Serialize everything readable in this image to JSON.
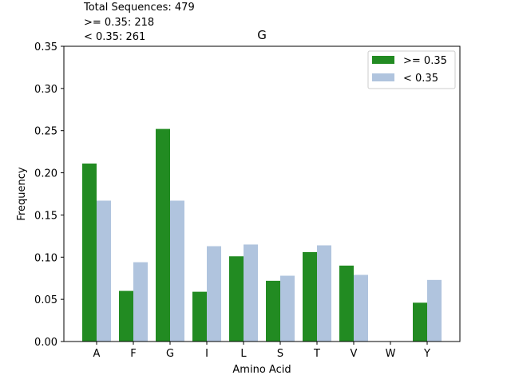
{
  "annotations": {
    "total": "Total Sequences: 479",
    "above": ">= 0.35: 218",
    "below": "< 0.35: 261"
  },
  "chart_data": {
    "type": "bar",
    "title": "G",
    "xlabel": "Amino Acid",
    "ylabel": "Frequency",
    "ylim": [
      0,
      0.35
    ],
    "yticks": [
      "0.00",
      "0.05",
      "0.10",
      "0.15",
      "0.20",
      "0.25",
      "0.30",
      "0.35"
    ],
    "categories": [
      "A",
      "F",
      "G",
      "I",
      "L",
      "S",
      "T",
      "V",
      "W",
      "Y"
    ],
    "series": [
      {
        "name": ">= 0.35",
        "color": "#228b22",
        "values": [
          0.211,
          0.06,
          0.252,
          0.059,
          0.101,
          0.072,
          0.106,
          0.09,
          0.0,
          0.046
        ]
      },
      {
        "name": "< 0.35",
        "color": "#b0c4de",
        "values": [
          0.167,
          0.094,
          0.167,
          0.113,
          0.115,
          0.078,
          0.114,
          0.079,
          0.0,
          0.073
        ]
      }
    ],
    "legend": "top-right",
    "grid": false
  }
}
